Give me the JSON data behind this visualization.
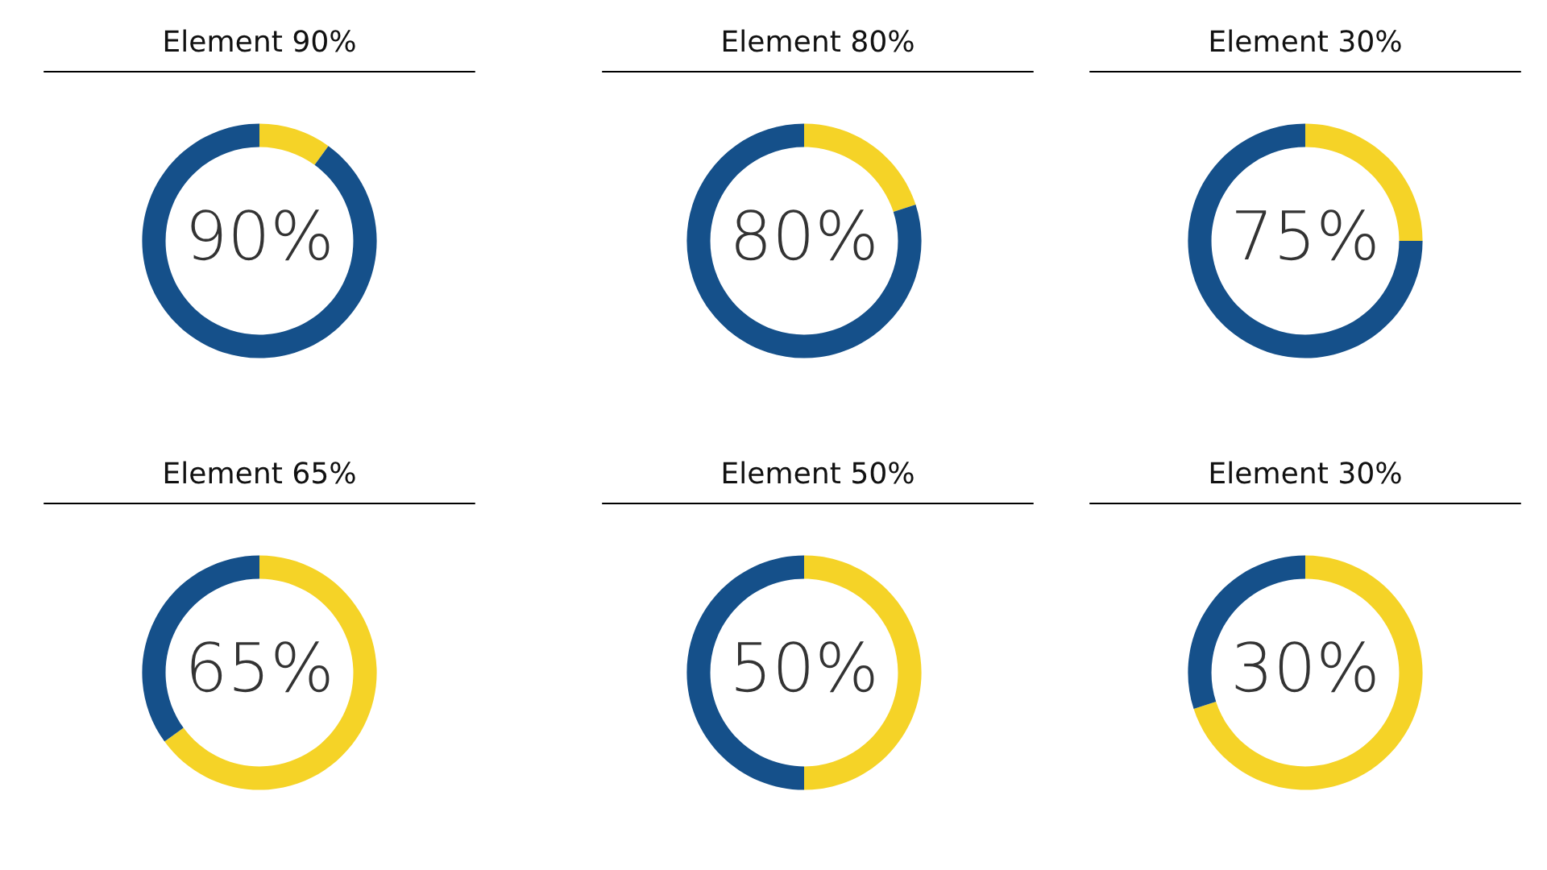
{
  "chart_data": [
    {
      "type": "donut",
      "title": "Element 90%",
      "categories": [
        null,
        null
      ],
      "values": [
        10,
        90
      ],
      "colors": [
        "#f5d327",
        "#15508a"
      ],
      "annotations": [
        "90%"
      ]
    },
    {
      "type": "donut",
      "title": "Element 80%",
      "categories": [
        null,
        null
      ],
      "values": [
        20,
        80
      ],
      "colors": [
        "#f5d327",
        "#15508a"
      ],
      "annotations": [
        "80%"
      ]
    },
    {
      "type": "donut",
      "title": "Element 30%",
      "categories": [
        null,
        null
      ],
      "values": [
        25,
        75
      ],
      "colors": [
        "#f5d327",
        "#15508a"
      ],
      "annotations": [
        "75%"
      ]
    },
    {
      "type": "donut",
      "title": "Element 65%",
      "categories": [
        null,
        null
      ],
      "values": [
        65,
        35
      ],
      "colors": [
        "#f5d327",
        "#15508a"
      ],
      "annotations": [
        "65%"
      ]
    },
    {
      "type": "donut",
      "title": "Element 50%",
      "categories": [
        null,
        null
      ],
      "values": [
        50,
        50
      ],
      "colors": [
        "#f5d327",
        "#15508a"
      ],
      "annotations": [
        "50%"
      ]
    },
    {
      "type": "donut",
      "title": "Element 30%",
      "categories": [
        null,
        null
      ],
      "values": [
        70,
        30
      ],
      "colors": [
        "#f5d327",
        "#15508a"
      ],
      "annotations": [
        "30%"
      ]
    }
  ]
}
